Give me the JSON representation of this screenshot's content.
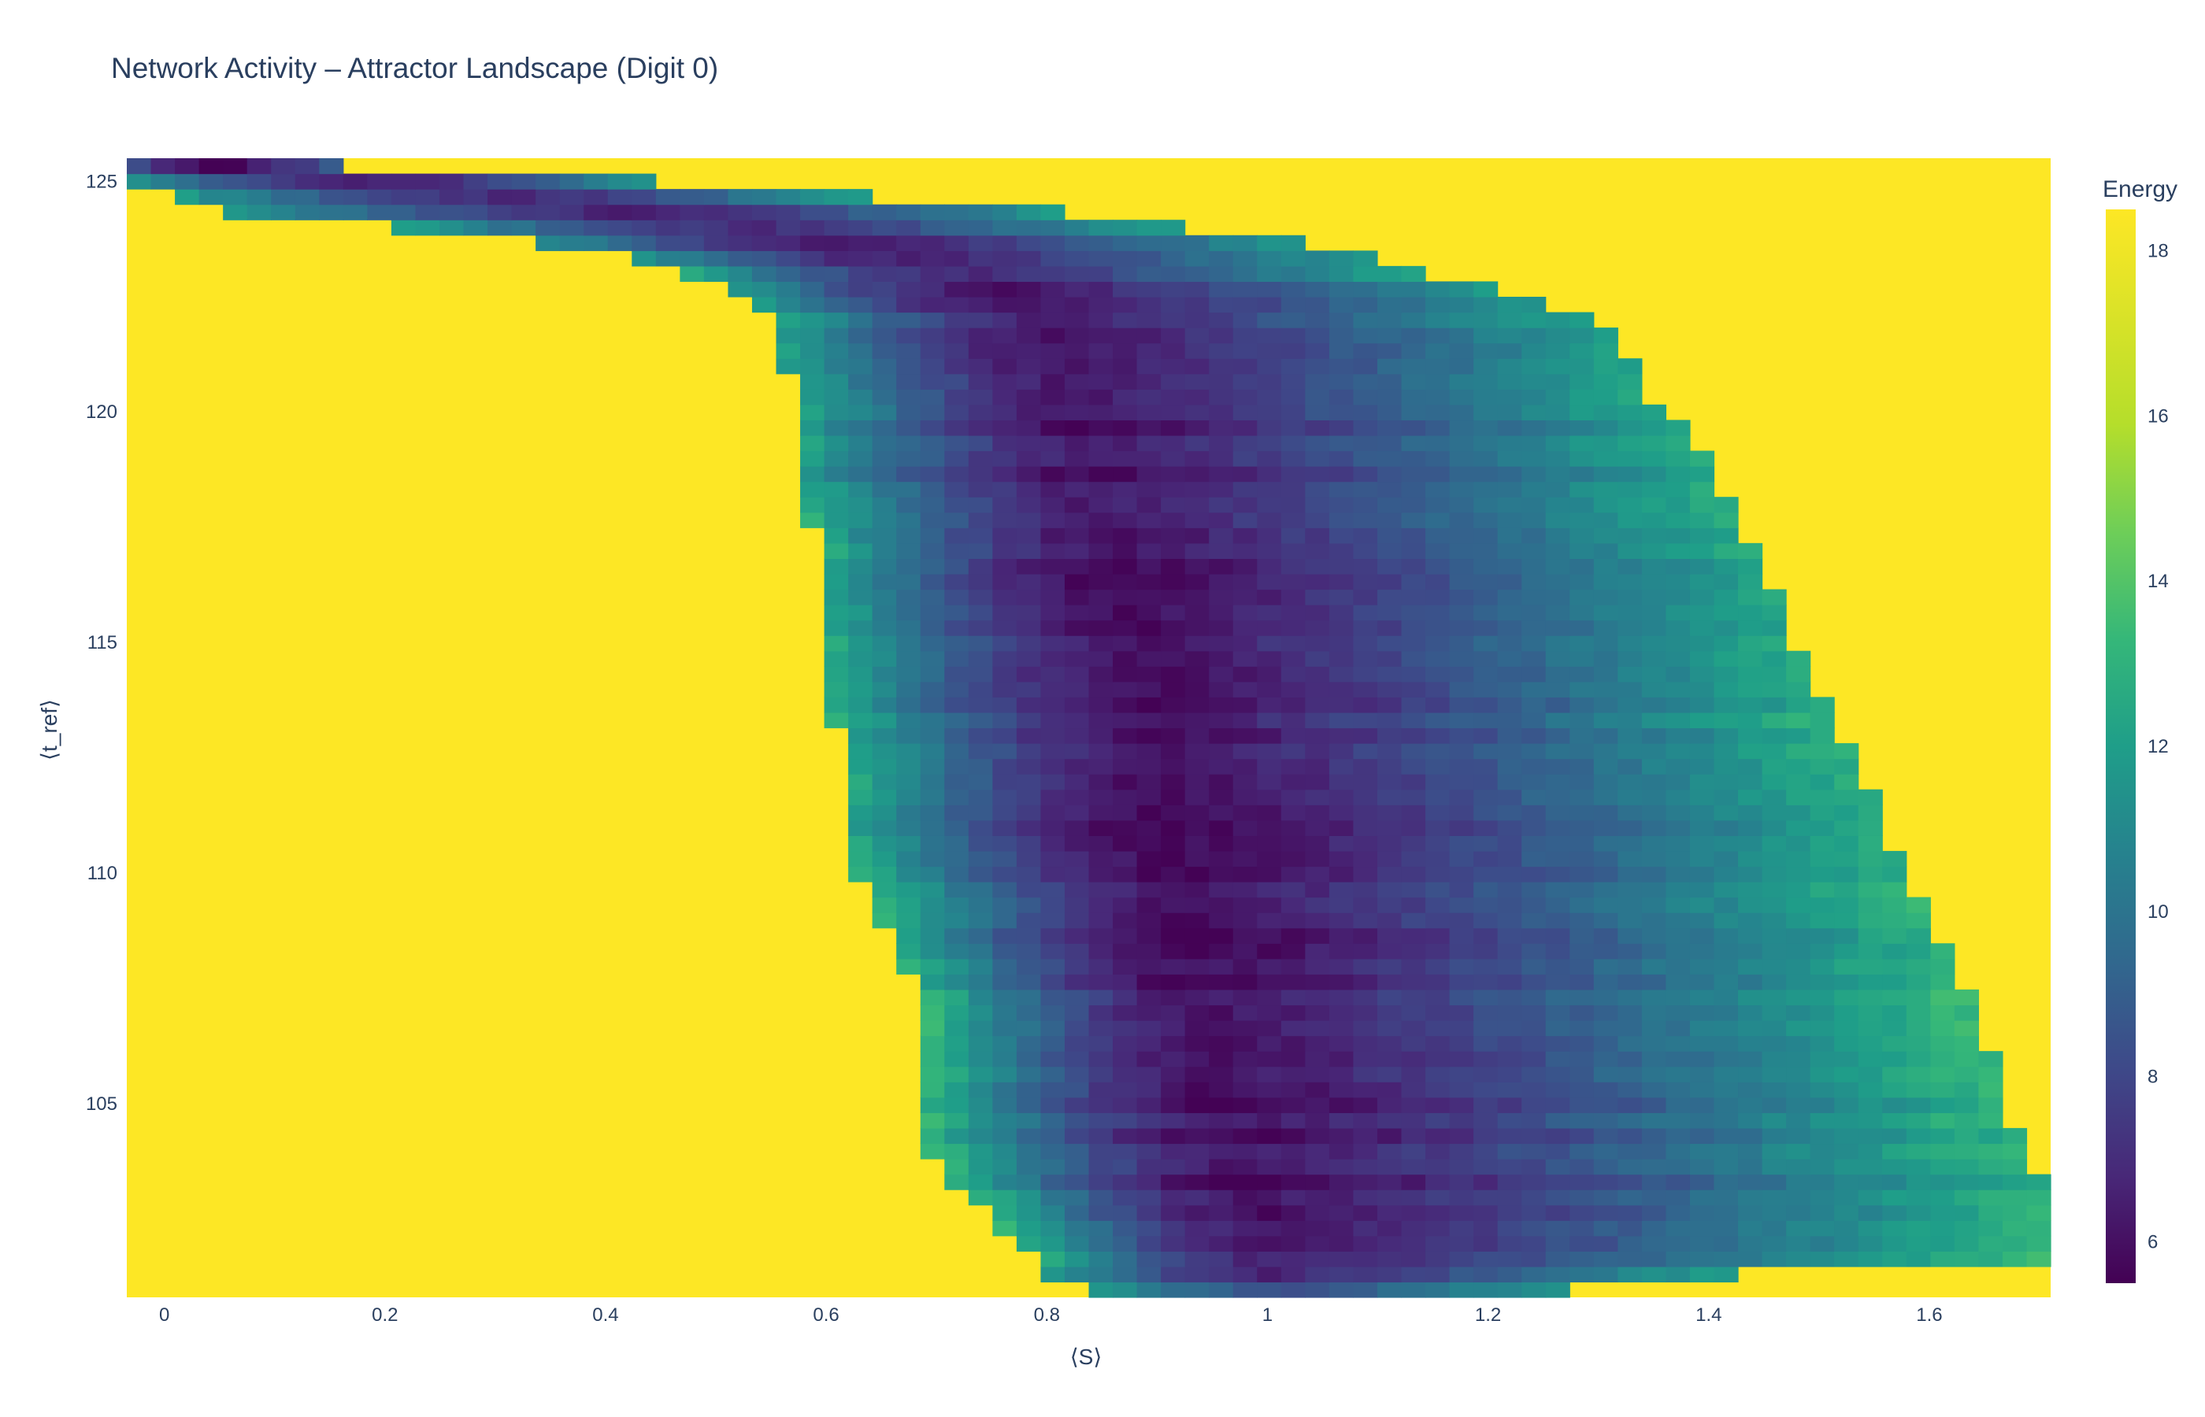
{
  "chart_data": {
    "type": "heatmap",
    "title": "Network Activity – Attractor Landscape (Digit 0)",
    "xlabel": "⟨S⟩",
    "ylabel": "⟨t_ref⟩",
    "xlim": [
      -0.034,
      1.71
    ],
    "ylim": [
      100.8,
      125.5
    ],
    "x_ticks": [
      "0",
      "0.2",
      "0.4",
      "0.6",
      "0.8",
      "1",
      "1.2",
      "1.4",
      "1.6"
    ],
    "x_tick_values": [
      0,
      0.2,
      0.4,
      0.6,
      0.8,
      1.0,
      1.2,
      1.4,
      1.6
    ],
    "y_ticks": [
      "105",
      "110",
      "115",
      "120",
      "125"
    ],
    "y_tick_values": [
      105,
      110,
      115,
      120,
      125
    ],
    "colorbar": {
      "title": "Energy",
      "ticks": [
        "6",
        "8",
        "10",
        "12",
        "14",
        "16",
        "18"
      ],
      "tick_values": [
        6,
        8,
        10,
        12,
        14,
        16,
        18
      ],
      "range": [
        5.5,
        18.5
      ],
      "colorscale": "Viridis"
    },
    "background_value": 18.5,
    "grid": false,
    "basin_rows": [
      {
        "t_ref": 125.3,
        "s_min": -0.034,
        "s_max": 0.16,
        "s_center": 0.05,
        "e_min": 5.6,
        "edge_e": 10
      },
      {
        "t_ref": 125.0,
        "s_min": -0.034,
        "s_max": 0.45,
        "s_center": 0.2,
        "e_min": 6.5,
        "edge_e": 12.5
      },
      {
        "t_ref": 124.4,
        "s_min": 0.03,
        "s_max": 0.8,
        "s_center": 0.42,
        "e_min": 6.6,
        "edge_e": 12.5
      },
      {
        "t_ref": 123.8,
        "s_min": 0.3,
        "s_max": 1.0,
        "s_center": 0.6,
        "e_min": 6.7,
        "edge_e": 12.5
      },
      {
        "t_ref": 123.2,
        "s_min": 0.45,
        "s_max": 1.12,
        "s_center": 0.7,
        "e_min": 6.6,
        "edge_e": 12.8
      },
      {
        "t_ref": 122.6,
        "s_min": 0.52,
        "s_max": 1.22,
        "s_center": 0.76,
        "e_min": 6.5,
        "edge_e": 13
      },
      {
        "t_ref": 122.0,
        "s_min": 0.56,
        "s_max": 1.3,
        "s_center": 0.8,
        "e_min": 6.4,
        "edge_e": 13
      },
      {
        "t_ref": 121.0,
        "s_min": 0.56,
        "s_max": 1.33,
        "s_center": 0.82,
        "e_min": 6.3,
        "edge_e": 13
      },
      {
        "t_ref": 120.0,
        "s_min": 0.58,
        "s_max": 1.36,
        "s_center": 0.83,
        "e_min": 6.2,
        "edge_e": 13.2
      },
      {
        "t_ref": 119.0,
        "s_min": 0.57,
        "s_max": 1.4,
        "s_center": 0.84,
        "e_min": 6.2,
        "edge_e": 13.2
      },
      {
        "t_ref": 118.0,
        "s_min": 0.58,
        "s_max": 1.42,
        "s_center": 0.85,
        "e_min": 6.2,
        "edge_e": 13.3
      },
      {
        "t_ref": 117.0,
        "s_min": 0.6,
        "s_max": 1.44,
        "s_center": 0.86,
        "e_min": 6.2,
        "edge_e": 13.4
      },
      {
        "t_ref": 116.0,
        "s_min": 0.6,
        "s_max": 1.46,
        "s_center": 0.87,
        "e_min": 6.1,
        "edge_e": 13.5
      },
      {
        "t_ref": 115.0,
        "s_min": 0.6,
        "s_max": 1.48,
        "s_center": 0.88,
        "e_min": 6.1,
        "edge_e": 13.5
      },
      {
        "t_ref": 114.0,
        "s_min": 0.6,
        "s_max": 1.5,
        "s_center": 0.89,
        "e_min": 6.0,
        "edge_e": 13.6
      },
      {
        "t_ref": 113.0,
        "s_min": 0.61,
        "s_max": 1.52,
        "s_center": 0.9,
        "e_min": 6.0,
        "edge_e": 13.6
      },
      {
        "t_ref": 112.0,
        "s_min": 0.62,
        "s_max": 1.54,
        "s_center": 0.9,
        "e_min": 6.0,
        "edge_e": 13.7
      },
      {
        "t_ref": 111.0,
        "s_min": 0.61,
        "s_max": 1.56,
        "s_center": 0.91,
        "e_min": 6.0,
        "edge_e": 13.8
      },
      {
        "t_ref": 110.0,
        "s_min": 0.63,
        "s_max": 1.58,
        "s_center": 0.92,
        "e_min": 5.9,
        "edge_e": 13.9
      },
      {
        "t_ref": 109.0,
        "s_min": 0.65,
        "s_max": 1.6,
        "s_center": 0.92,
        "e_min": 5.9,
        "edge_e": 14
      },
      {
        "t_ref": 108.0,
        "s_min": 0.67,
        "s_max": 1.62,
        "s_center": 0.93,
        "e_min": 5.9,
        "edge_e": 14
      },
      {
        "t_ref": 107.0,
        "s_min": 0.69,
        "s_max": 1.64,
        "s_center": 0.94,
        "e_min": 5.9,
        "edge_e": 14
      },
      {
        "t_ref": 106.0,
        "s_min": 0.69,
        "s_max": 1.66,
        "s_center": 0.95,
        "e_min": 5.9,
        "edge_e": 14
      },
      {
        "t_ref": 105.0,
        "s_min": 0.69,
        "s_max": 1.67,
        "s_center": 0.96,
        "e_min": 5.9,
        "edge_e": 14
      },
      {
        "t_ref": 104.0,
        "s_min": 0.69,
        "s_max": 1.69,
        "s_center": 0.97,
        "e_min": 5.9,
        "edge_e": 14
      },
      {
        "t_ref": 103.0,
        "s_min": 0.73,
        "s_max": 1.71,
        "s_center": 0.98,
        "e_min": 6.0,
        "edge_e": 14
      },
      {
        "t_ref": 102.2,
        "s_min": 0.76,
        "s_max": 1.71,
        "s_center": 1.0,
        "e_min": 6.1,
        "edge_e": 14
      },
      {
        "t_ref": 101.6,
        "s_min": 0.79,
        "s_max": 1.71,
        "s_center": 1.0,
        "e_min": 6.3,
        "edge_e": 14
      },
      {
        "t_ref": 101.2,
        "s_min": 0.8,
        "s_max": 1.32,
        "s_center": 1.0,
        "e_min": 7.5,
        "edge_e": 13
      },
      {
        "t_ref": 100.8,
        "s_min": 0.86,
        "s_max": 1.25,
        "s_center": 1.02,
        "e_min": 10.5,
        "edge_e": 13
      }
    ]
  }
}
